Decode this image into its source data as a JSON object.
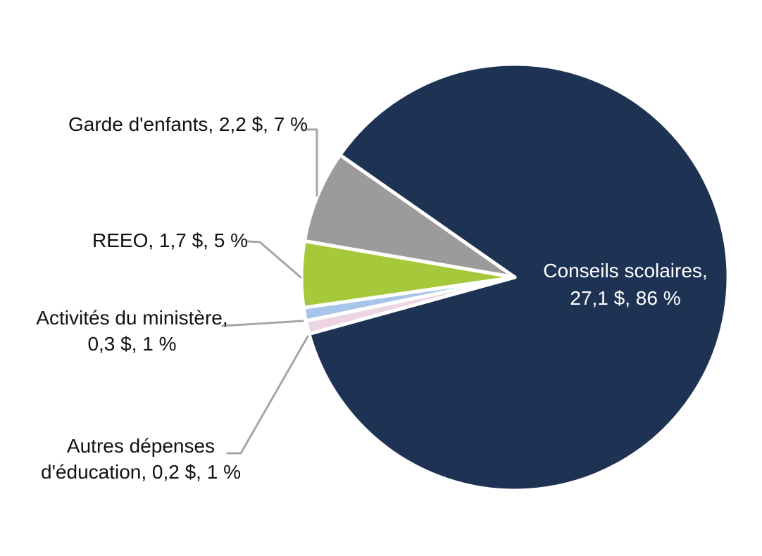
{
  "chart_data": {
    "type": "pie",
    "title": "",
    "unit_hint": "$",
    "total_pct": 100,
    "slices": [
      {
        "id": "conseils-scolaires",
        "label": "Conseils scolaires",
        "value": 27.1,
        "value_display": "27,1 $",
        "pct": 86,
        "pct_display": "86 %",
        "color": "#1E3254"
      },
      {
        "id": "garde-denfants",
        "label": "Garde d'enfants",
        "value": 2.2,
        "value_display": "2,2 $",
        "pct": 7,
        "pct_display": "7 %",
        "color": "#9B9B9B"
      },
      {
        "id": "reeo",
        "label": "REEO",
        "value": 1.7,
        "value_display": "1,7 $",
        "pct": 5,
        "pct_display": "5 %",
        "color": "#A5C93A"
      },
      {
        "id": "activites-du-ministere",
        "label": "Activités du ministère",
        "value": 0.3,
        "value_display": "0,3 $",
        "pct": 1,
        "pct_display": "1 %",
        "color": "#A7C5E8"
      },
      {
        "id": "autres-depenses-deducation",
        "label": "Autres dépenses d'éducation",
        "value": 0.2,
        "value_display": "0,2 $",
        "pct": 1,
        "pct_display": "1 %",
        "color": "#EDD5E3"
      }
    ],
    "legend": "none",
    "labels_style": "callouts-with-leader-lines"
  },
  "labels": {
    "conseils": {
      "line1": "Conseils scolaires,",
      "line2": "27,1 $, 86 %"
    },
    "garde": {
      "line1": "Garde d'enfants, 2,2 $, 7 %"
    },
    "reeo": {
      "line1": "REEO, 1,7 $, 5 %"
    },
    "activites": {
      "line1": "Activités du ministère,",
      "line2": "0,3 $, 1 %"
    },
    "autres": {
      "line1": "Autres dépenses",
      "line2": "d'éducation, 0,2 $, 1 %"
    }
  },
  "style": {
    "background": "#FFFFFF",
    "slice_border_color": "#FFFFFF",
    "leader_line_color": "#A6A6A6",
    "callout_text_color": "#111111",
    "inner_label_text_color": "#FFFFFF"
  }
}
